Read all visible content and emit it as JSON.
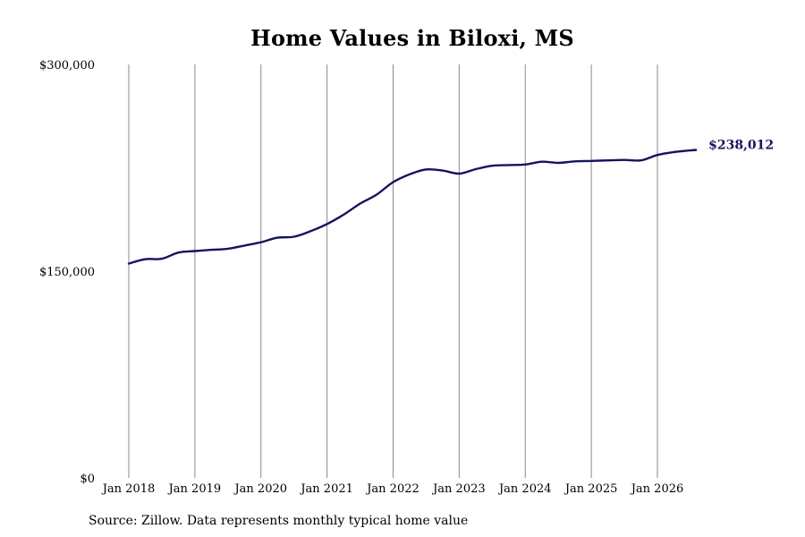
{
  "chart_data": {
    "type": "line",
    "title": "Home Values in Biloxi, MS",
    "y_ticks": [
      "$300,000",
      "$150,000",
      "$0"
    ],
    "ylim": [
      0,
      300000
    ],
    "x_ticks": [
      "Jan 2018",
      "Jan 2019",
      "Jan 2020",
      "Jan 2021",
      "Jan 2022",
      "Jan 2023",
      "Jan 2024",
      "Jan 2025",
      "Jan 2026"
    ],
    "xlim": [
      "2018-01",
      "2026-08"
    ],
    "grid": "vertical lines at each January",
    "end_label": "$238,012",
    "color": "#14145f",
    "series": [
      {
        "points": [
          [
            "2018-01",
            155500
          ],
          [
            "2018-04",
            158700
          ],
          [
            "2018-07",
            159000
          ],
          [
            "2018-10",
            163500
          ],
          [
            "2019-01",
            164600
          ],
          [
            "2019-04",
            165500
          ],
          [
            "2019-07",
            166300
          ],
          [
            "2019-10",
            168600
          ],
          [
            "2020-01",
            171000
          ],
          [
            "2020-04",
            174300
          ],
          [
            "2020-07",
            175000
          ],
          [
            "2020-10",
            179000
          ],
          [
            "2021-01",
            184200
          ],
          [
            "2021-04",
            191000
          ],
          [
            "2021-07",
            199000
          ],
          [
            "2021-10",
            205500
          ],
          [
            "2022-01",
            214600
          ],
          [
            "2022-04",
            220300
          ],
          [
            "2022-07",
            223800
          ],
          [
            "2022-10",
            223000
          ],
          [
            "2023-01",
            220800
          ],
          [
            "2023-04",
            224000
          ],
          [
            "2023-07",
            226500
          ],
          [
            "2023-10",
            227000
          ],
          [
            "2024-01",
            227400
          ],
          [
            "2024-04",
            229400
          ],
          [
            "2024-07",
            228600
          ],
          [
            "2024-10",
            229700
          ],
          [
            "2025-01",
            230000
          ],
          [
            "2025-04",
            230400
          ],
          [
            "2025-07",
            230700
          ],
          [
            "2025-10",
            230400
          ],
          [
            "2026-01",
            234300
          ],
          [
            "2026-04",
            236400
          ],
          [
            "2026-08",
            238012
          ]
        ]
      }
    ]
  },
  "footer": {
    "source": "Source: Zillow. Data represents monthly typical home value"
  }
}
